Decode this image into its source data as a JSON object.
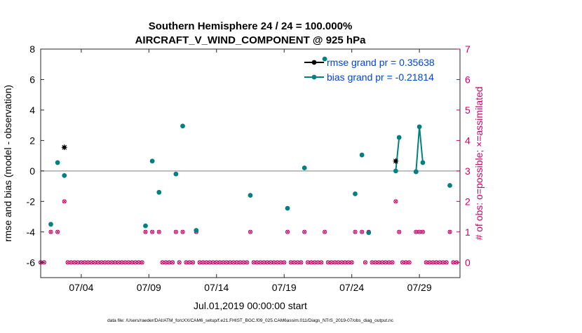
{
  "chart_data": {
    "type": "scatter",
    "title_line1": "Southern Hemisphere 24 / 24 = 100.000%",
    "title_line2": "AIRCRAFT_V_WIND_COMPONENT @ 925 hPa",
    "ylabel_left": "rmse and bias (model - observation)",
    "ylabel_right": "# of obs: o=possible; ×=assimilated",
    "xlabel": "Jul.01,2019 00:00:00 start",
    "footer": "data file: /Users/raeder/DAI/ATM_forcXX/CAM6_setup/f.e21.FHIST_BGC.f09_025.CAM6assim.011/Diags_NTrS_2019-07/obs_diag_output.nc",
    "xlim": [
      1,
      32
    ],
    "ylim_left": [
      -7,
      8
    ],
    "ylim_right": [
      -0.5,
      7
    ],
    "yticks_left": [
      -6,
      -4,
      -2,
      0,
      2,
      4,
      6,
      8
    ],
    "yticks_right": [
      0,
      1,
      2,
      3,
      4,
      5,
      6,
      7
    ],
    "xticks": [
      {
        "day": 4,
        "label": "07/04"
      },
      {
        "day": 9,
        "label": "07/09"
      },
      {
        "day": 14,
        "label": "07/14"
      },
      {
        "day": 19,
        "label": "07/19"
      },
      {
        "day": 24,
        "label": "07/24"
      },
      {
        "day": 29,
        "label": "07/29"
      }
    ],
    "zero_line": 0,
    "colors": {
      "rmse": "#000000",
      "bias": "#008080",
      "obs": "#cc0066",
      "right_axis": "#cc0066",
      "zero_line": "#aaaaaa"
    },
    "legend": [
      {
        "key": "rmse",
        "label": "rmse grand pr = 0.35638"
      },
      {
        "key": "bias",
        "label": "bias grand pr = -0.21814"
      }
    ],
    "legend_position": "top-right",
    "rmse": [
      {
        "x": 2.75,
        "y": 1.55
      },
      {
        "x": 27.25,
        "y": 0.65
      }
    ],
    "bias_points": [
      {
        "x": 1.75,
        "y": -3.5
      },
      {
        "x": 2.25,
        "y": 0.55
      },
      {
        "x": 2.75,
        "y": -0.3
      },
      {
        "x": 8.75,
        "y": -3.6
      },
      {
        "x": 9.25,
        "y": 0.65
      },
      {
        "x": 9.75,
        "y": -1.4
      },
      {
        "x": 11.0,
        "y": -0.2
      },
      {
        "x": 11.5,
        "y": 2.95
      },
      {
        "x": 12.5,
        "y": -3.9
      },
      {
        "x": 16.5,
        "y": -1.6
      },
      {
        "x": 19.25,
        "y": -2.45
      },
      {
        "x": 20.5,
        "y": 0.2
      },
      {
        "x": 22.0,
        "y": 7.35
      },
      {
        "x": 24.25,
        "y": -1.5
      },
      {
        "x": 24.75,
        "y": 1.05
      },
      {
        "x": 25.25,
        "y": -4.05
      },
      {
        "x": 28.75,
        "y": -0.05
      },
      {
        "x": 31.25,
        "y": -0.95
      }
    ],
    "bias_lines": [
      [
        {
          "x": 27.25,
          "y": 0.0
        },
        {
          "x": 27.5,
          "y": 2.2
        }
      ],
      [
        {
          "x": 28.75,
          "y": -0.05
        },
        {
          "x": 29.0,
          "y": 2.9
        },
        {
          "x": 29.25,
          "y": 0.55
        }
      ]
    ],
    "obs_possible": [
      {
        "x": 1.0,
        "n": 0
      },
      {
        "x": 1.25,
        "n": 0
      },
      {
        "x": 1.75,
        "n": 1
      },
      {
        "x": 2.25,
        "n": 1
      },
      {
        "x": 2.75,
        "n": 2
      },
      {
        "x": 3.0,
        "n": 0
      },
      {
        "x": 3.25,
        "n": 0
      },
      {
        "x": 3.5,
        "n": 0
      },
      {
        "x": 3.75,
        "n": 0
      },
      {
        "x": 4.0,
        "n": 0
      },
      {
        "x": 4.25,
        "n": 0
      },
      {
        "x": 4.5,
        "n": 0
      },
      {
        "x": 4.75,
        "n": 0
      },
      {
        "x": 5.0,
        "n": 0
      },
      {
        "x": 5.25,
        "n": 0
      },
      {
        "x": 5.5,
        "n": 0
      },
      {
        "x": 5.75,
        "n": 0
      },
      {
        "x": 6.0,
        "n": 0
      },
      {
        "x": 6.25,
        "n": 0
      },
      {
        "x": 6.5,
        "n": 0
      },
      {
        "x": 6.75,
        "n": 0
      },
      {
        "x": 7.0,
        "n": 0
      },
      {
        "x": 7.25,
        "n": 0
      },
      {
        "x": 7.5,
        "n": 0
      },
      {
        "x": 7.75,
        "n": 0
      },
      {
        "x": 8.0,
        "n": 0
      },
      {
        "x": 8.25,
        "n": 0
      },
      {
        "x": 8.5,
        "n": 0
      },
      {
        "x": 8.75,
        "n": 1
      },
      {
        "x": 9.25,
        "n": 1
      },
      {
        "x": 9.75,
        "n": 1
      },
      {
        "x": 10.0,
        "n": 0
      },
      {
        "x": 10.25,
        "n": 0
      },
      {
        "x": 10.5,
        "n": 0
      },
      {
        "x": 10.75,
        "n": 0
      },
      {
        "x": 11.0,
        "n": 1
      },
      {
        "x": 11.25,
        "n": 0
      },
      {
        "x": 11.5,
        "n": 1
      },
      {
        "x": 11.75,
        "n": 0
      },
      {
        "x": 12.0,
        "n": 0
      },
      {
        "x": 12.25,
        "n": 0
      },
      {
        "x": 12.5,
        "n": 1
      },
      {
        "x": 12.75,
        "n": 0
      },
      {
        "x": 13.0,
        "n": 0
      },
      {
        "x": 13.25,
        "n": 0
      },
      {
        "x": 13.5,
        "n": 0
      },
      {
        "x": 13.75,
        "n": 0
      },
      {
        "x": 14.0,
        "n": 0
      },
      {
        "x": 14.25,
        "n": 0
      },
      {
        "x": 14.5,
        "n": 0
      },
      {
        "x": 14.75,
        "n": 0
      },
      {
        "x": 15.0,
        "n": 0
      },
      {
        "x": 15.25,
        "n": 0
      },
      {
        "x": 15.5,
        "n": 0
      },
      {
        "x": 15.75,
        "n": 0
      },
      {
        "x": 16.0,
        "n": 0
      },
      {
        "x": 16.25,
        "n": 0
      },
      {
        "x": 16.5,
        "n": 1
      },
      {
        "x": 16.75,
        "n": 0
      },
      {
        "x": 17.0,
        "n": 0
      },
      {
        "x": 17.25,
        "n": 0
      },
      {
        "x": 17.5,
        "n": 0
      },
      {
        "x": 17.75,
        "n": 0
      },
      {
        "x": 18.0,
        "n": 0
      },
      {
        "x": 18.25,
        "n": 0
      },
      {
        "x": 18.5,
        "n": 0
      },
      {
        "x": 18.75,
        "n": 0
      },
      {
        "x": 19.0,
        "n": 0
      },
      {
        "x": 19.25,
        "n": 1
      },
      {
        "x": 19.5,
        "n": 0
      },
      {
        "x": 19.75,
        "n": 0
      },
      {
        "x": 20.0,
        "n": 0
      },
      {
        "x": 20.25,
        "n": 0
      },
      {
        "x": 20.5,
        "n": 1
      },
      {
        "x": 20.75,
        "n": 0
      },
      {
        "x": 21.0,
        "n": 0
      },
      {
        "x": 21.25,
        "n": 0
      },
      {
        "x": 21.5,
        "n": 0
      },
      {
        "x": 21.75,
        "n": 0
      },
      {
        "x": 22.0,
        "n": 1
      },
      {
        "x": 22.25,
        "n": 0
      },
      {
        "x": 22.5,
        "n": 0
      },
      {
        "x": 22.75,
        "n": 0
      },
      {
        "x": 23.0,
        "n": 0
      },
      {
        "x": 23.25,
        "n": 0
      },
      {
        "x": 23.5,
        "n": 0
      },
      {
        "x": 23.75,
        "n": 0
      },
      {
        "x": 24.0,
        "n": 0
      },
      {
        "x": 24.25,
        "n": 1
      },
      {
        "x": 24.75,
        "n": 1
      },
      {
        "x": 25.0,
        "n": 0
      },
      {
        "x": 25.25,
        "n": 1
      },
      {
        "x": 25.5,
        "n": 0
      },
      {
        "x": 25.75,
        "n": 0
      },
      {
        "x": 26.0,
        "n": 0
      },
      {
        "x": 26.25,
        "n": 0
      },
      {
        "x": 26.5,
        "n": 0
      },
      {
        "x": 26.75,
        "n": 0
      },
      {
        "x": 27.0,
        "n": 0
      },
      {
        "x": 27.25,
        "n": 2
      },
      {
        "x": 27.5,
        "n": 1
      },
      {
        "x": 27.75,
        "n": 0
      },
      {
        "x": 28.0,
        "n": 0
      },
      {
        "x": 28.25,
        "n": 0
      },
      {
        "x": 28.75,
        "n": 1
      },
      {
        "x": 29.0,
        "n": 1
      },
      {
        "x": 29.25,
        "n": 1
      },
      {
        "x": 29.5,
        "n": 0
      },
      {
        "x": 29.75,
        "n": 0
      },
      {
        "x": 30.0,
        "n": 0
      },
      {
        "x": 30.25,
        "n": 0
      },
      {
        "x": 30.5,
        "n": 0
      },
      {
        "x": 30.75,
        "n": 0
      },
      {
        "x": 31.0,
        "n": 0
      },
      {
        "x": 31.25,
        "n": 1
      },
      {
        "x": 31.5,
        "n": 0
      },
      {
        "x": 31.75,
        "n": 0
      }
    ]
  }
}
